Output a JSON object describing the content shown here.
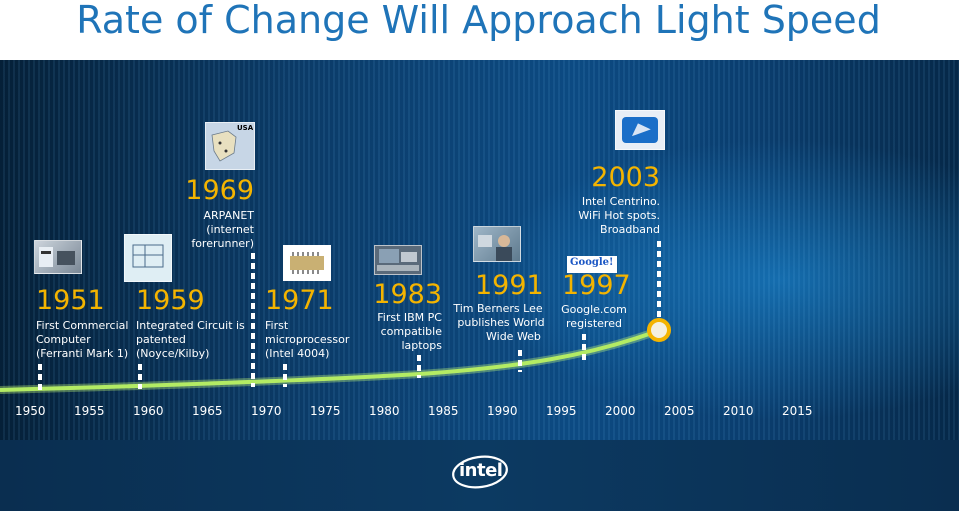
{
  "title": "Rate of Change Will Approach Light Speed",
  "events": [
    {
      "id": "1951",
      "year": "1951",
      "lines": [
        "First Commercial",
        "Computer",
        "(Ferranti Mark 1)"
      ],
      "image": "ferranti-computer-photo"
    },
    {
      "id": "1959",
      "year": "1959",
      "lines": [
        "Integrated Circuit is",
        "patented",
        "(Noyce/Kilby)"
      ],
      "image": "patent-drawing"
    },
    {
      "id": "1969",
      "year": "1969",
      "lines": [
        "ARPANET",
        "(internet",
        "forerunner)"
      ],
      "image": "usa-map",
      "image_label": "USA"
    },
    {
      "id": "1971",
      "year": "1971",
      "lines": [
        "First",
        "microprocessor",
        "(Intel 4004)"
      ],
      "image": "microchip"
    },
    {
      "id": "1983",
      "year": "1983",
      "lines": [
        "First IBM PC",
        "compatible",
        "laptops"
      ],
      "image": "laptop"
    },
    {
      "id": "1991",
      "year": "1991",
      "lines": [
        "Tim Berners Lee",
        "publishes World",
        "Wide Web"
      ],
      "image": "person-photo"
    },
    {
      "id": "1997",
      "year": "1997",
      "lines": [
        "Google.com",
        "registered"
      ],
      "image": "google-logo",
      "image_label": "Google!"
    },
    {
      "id": "2003",
      "year": "2003",
      "lines": [
        "Intel Centrino.",
        "WiFi Hot spots.",
        "Broadband"
      ],
      "image": "centrino-logo"
    }
  ],
  "axis": {
    "ticks": [
      "1950",
      "1955",
      "1960",
      "1965",
      "1970",
      "1975",
      "1980",
      "1985",
      "1990",
      "1995",
      "2000",
      "2005",
      "2010",
      "2015"
    ]
  },
  "logo": {
    "text": "intel"
  },
  "colors": {
    "title": "#1f74b8",
    "year": "#f4b400",
    "curve": "#a8e05a",
    "text": "#ffffff"
  }
}
